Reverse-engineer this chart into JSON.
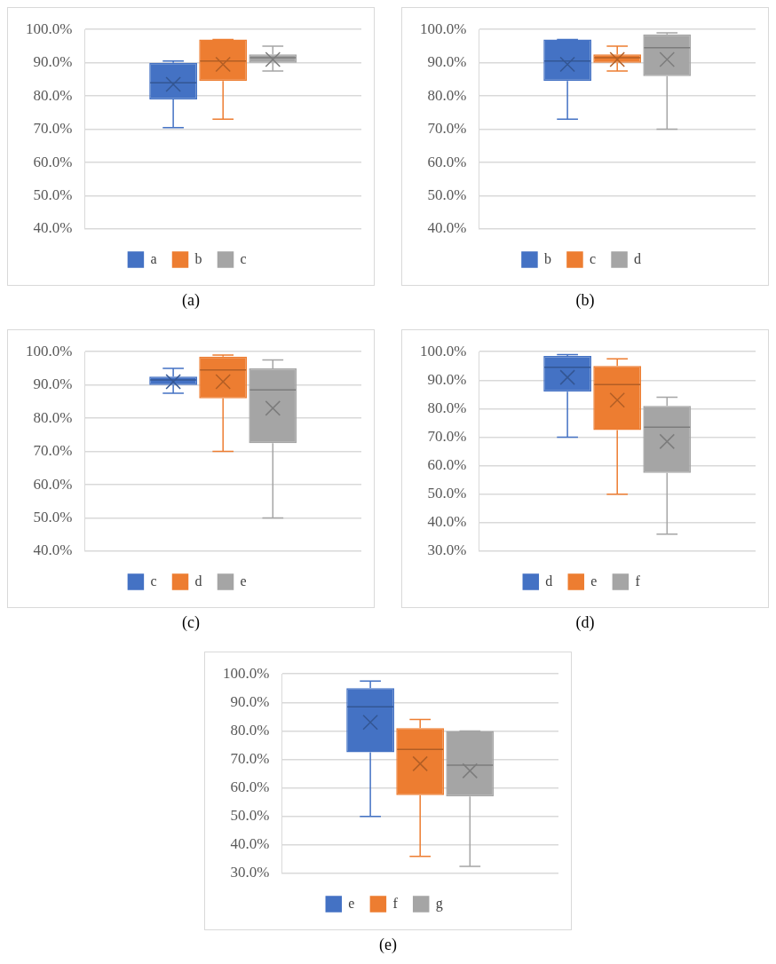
{
  "chart_data": [
    {
      "type": "box",
      "title": "(a)",
      "categories": [
        null
      ],
      "ylim": [
        40,
        100
      ],
      "yticks": [
        {
          "value": 40,
          "label": "40.0%"
        },
        {
          "value": 50,
          "label": "50.0%"
        },
        {
          "value": 60,
          "label": "60.0%"
        },
        {
          "value": 70,
          "label": "70.0%"
        },
        {
          "value": 80,
          "label": "80.0%"
        },
        {
          "value": 90,
          "label": "90.0%"
        },
        {
          "value": 100,
          "label": "100.0%"
        }
      ],
      "grid": "y",
      "legend": "bottom",
      "tick_labels": "y",
      "series": [
        {
          "name": "a",
          "color": "#4472c4",
          "boxes": [
            {
              "low": 70.5,
              "q1": 79,
              "median": 84,
              "q3": 90,
              "high": 90.5,
              "mean": 83.5
            }
          ]
        },
        {
          "name": "b",
          "color": "#ed7d31",
          "boxes": [
            {
              "low": 73,
              "q1": 84.5,
              "median": 90.5,
              "q3": 97,
              "high": 97,
              "mean": 89.5
            }
          ]
        },
        {
          "name": "c",
          "color": "#a5a5a5",
          "boxes": [
            {
              "low": 87.5,
              "q1": 90,
              "median": 91.5,
              "q3": 92.5,
              "high": 95,
              "mean": 91
            }
          ]
        }
      ]
    },
    {
      "type": "box",
      "title": "(b)",
      "categories": [
        null
      ],
      "ylim": [
        40,
        100
      ],
      "yticks": [
        {
          "value": 40,
          "label": "40.0%"
        },
        {
          "value": 50,
          "label": "50.0%"
        },
        {
          "value": 60,
          "label": "60.0%"
        },
        {
          "value": 70,
          "label": "70.0%"
        },
        {
          "value": 80,
          "label": "80.0%"
        },
        {
          "value": 90,
          "label": "90.0%"
        },
        {
          "value": 100,
          "label": "100.0%"
        }
      ],
      "grid": "y",
      "legend": "bottom",
      "tick_labels": "y",
      "series": [
        {
          "name": "b",
          "color": "#4472c4",
          "boxes": [
            {
              "low": 73,
              "q1": 84.5,
              "median": 90.5,
              "q3": 97,
              "high": 97,
              "mean": 89.5
            }
          ]
        },
        {
          "name": "c",
          "color": "#ed7d31",
          "boxes": [
            {
              "low": 87.5,
              "q1": 90,
              "median": 91.5,
              "q3": 92.5,
              "high": 95,
              "mean": 91
            }
          ]
        },
        {
          "name": "d",
          "color": "#a5a5a5",
          "boxes": [
            {
              "low": 70,
              "q1": 86,
              "median": 94.5,
              "q3": 98.5,
              "high": 99,
              "mean": 91
            }
          ]
        }
      ]
    },
    {
      "type": "box",
      "title": "(c)",
      "categories": [
        null
      ],
      "ylim": [
        40,
        100
      ],
      "yticks": [
        {
          "value": 40,
          "label": "40.0%"
        },
        {
          "value": 50,
          "label": "50.0%"
        },
        {
          "value": 60,
          "label": "60.0%"
        },
        {
          "value": 70,
          "label": "70.0%"
        },
        {
          "value": 80,
          "label": "80.0%"
        },
        {
          "value": 90,
          "label": "90.0%"
        },
        {
          "value": 100,
          "label": "100.0%"
        }
      ],
      "grid": "y",
      "legend": "bottom",
      "tick_labels": "y",
      "series": [
        {
          "name": "c",
          "color": "#4472c4",
          "boxes": [
            {
              "low": 87.5,
              "q1": 90,
              "median": 91.5,
              "q3": 92.5,
              "high": 95,
              "mean": 91
            }
          ]
        },
        {
          "name": "d",
          "color": "#ed7d31",
          "boxes": [
            {
              "low": 70,
              "q1": 86,
              "median": 94.5,
              "q3": 98.5,
              "high": 99,
              "mean": 91
            }
          ]
        },
        {
          "name": "e",
          "color": "#a5a5a5",
          "boxes": [
            {
              "low": 50,
              "q1": 72.5,
              "median": 88.5,
              "q3": 95,
              "high": 97.5,
              "mean": 83
            }
          ]
        }
      ]
    },
    {
      "type": "box",
      "title": "(d)",
      "categories": [
        null
      ],
      "ylim": [
        30,
        100
      ],
      "yticks": [
        {
          "value": 30,
          "label": "30.0%"
        },
        {
          "value": 40,
          "label": "40.0%"
        },
        {
          "value": 50,
          "label": "50.0%"
        },
        {
          "value": 60,
          "label": "60.0%"
        },
        {
          "value": 70,
          "label": "70.0%"
        },
        {
          "value": 80,
          "label": "80.0%"
        },
        {
          "value": 90,
          "label": "90.0%"
        },
        {
          "value": 100,
          "label": "100.0%"
        }
      ],
      "grid": "y",
      "legend": "bottom",
      "tick_labels": "y",
      "series": [
        {
          "name": "d",
          "color": "#4472c4",
          "boxes": [
            {
              "low": 70,
              "q1": 86,
              "median": 94.5,
              "q3": 98.5,
              "high": 99,
              "mean": 91
            }
          ]
        },
        {
          "name": "e",
          "color": "#ed7d31",
          "boxes": [
            {
              "low": 50,
              "q1": 72.5,
              "median": 88.5,
              "q3": 95,
              "high": 97.5,
              "mean": 83
            }
          ]
        },
        {
          "name": "f",
          "color": "#a5a5a5",
          "boxes": [
            {
              "low": 36,
              "q1": 57.5,
              "median": 73.5,
              "q3": 81,
              "high": 84,
              "mean": 68.5
            }
          ]
        }
      ]
    },
    {
      "type": "box",
      "title": "(e)",
      "categories": [
        null
      ],
      "ylim": [
        30,
        100
      ],
      "yticks": [
        {
          "value": 30,
          "label": "30.0%"
        },
        {
          "value": 40,
          "label": "40.0%"
        },
        {
          "value": 50,
          "label": "50.0%"
        },
        {
          "value": 60,
          "label": "60.0%"
        },
        {
          "value": 70,
          "label": "70.0%"
        },
        {
          "value": 80,
          "label": "80.0%"
        },
        {
          "value": 90,
          "label": "90.0%"
        },
        {
          "value": 100,
          "label": "100.0%"
        }
      ],
      "grid": "y",
      "legend": "bottom",
      "tick_labels": "y",
      "series": [
        {
          "name": "e",
          "color": "#4472c4",
          "boxes": [
            {
              "low": 50,
              "q1": 72.5,
              "median": 88.5,
              "q3": 95,
              "high": 97.5,
              "mean": 83
            }
          ]
        },
        {
          "name": "f",
          "color": "#ed7d31",
          "boxes": [
            {
              "low": 36,
              "q1": 57.5,
              "median": 73.5,
              "q3": 81,
              "high": 84,
              "mean": 68.5
            }
          ]
        },
        {
          "name": "g",
          "color": "#a5a5a5",
          "boxes": [
            {
              "low": 32.5,
              "q1": 57,
              "median": 68,
              "q3": 80,
              "high": 80,
              "mean": 66
            }
          ]
        }
      ]
    }
  ]
}
